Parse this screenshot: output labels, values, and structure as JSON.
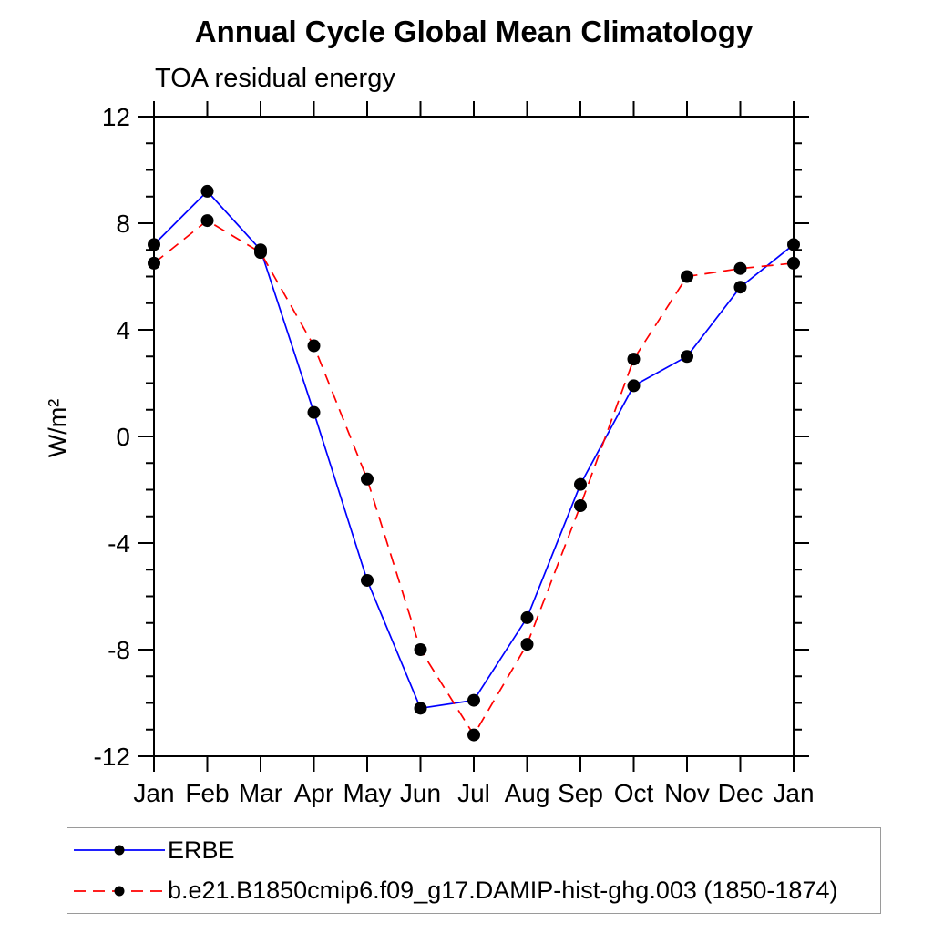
{
  "page": {
    "background": "#ffffff",
    "axis_color": "#000000",
    "legend_border_color": "#9a9a9a"
  },
  "chart_data": {
    "type": "line",
    "title": "Annual Cycle Global Mean Climatology",
    "subtitle": "TOA residual energy",
    "xlabel": "",
    "ylabel": "W/m²",
    "categories": [
      "Jan",
      "Feb",
      "Mar",
      "Apr",
      "May",
      "Jun",
      "Jul",
      "Aug",
      "Sep",
      "Oct",
      "Nov",
      "Dec",
      "Jan"
    ],
    "ylim": [
      -12,
      12
    ],
    "yticks_major": [
      12,
      8,
      4,
      0,
      -4,
      -8,
      -12
    ],
    "ytick_minor_step": 1,
    "grid": false,
    "legend_position": "bottom-left-box",
    "marker": "filled-circle",
    "marker_color": "#000000",
    "series": [
      {
        "name": "ERBE",
        "color": "#0000ff",
        "style": "solid",
        "values": [
          7.2,
          9.2,
          7.0,
          0.9,
          -5.4,
          -10.2,
          -9.9,
          -6.8,
          -1.8,
          1.9,
          3.0,
          5.6,
          7.2
        ]
      },
      {
        "name": "b.e21.B1850cmip6.f09_g17.DAMIP-hist-ghg.003 (1850-1874)",
        "color": "#ff0000",
        "style": "dashed",
        "values": [
          6.5,
          8.1,
          6.9,
          3.4,
          -1.6,
          -8.0,
          -11.2,
          -7.8,
          -2.6,
          2.9,
          6.0,
          6.3,
          6.5
        ]
      }
    ]
  }
}
